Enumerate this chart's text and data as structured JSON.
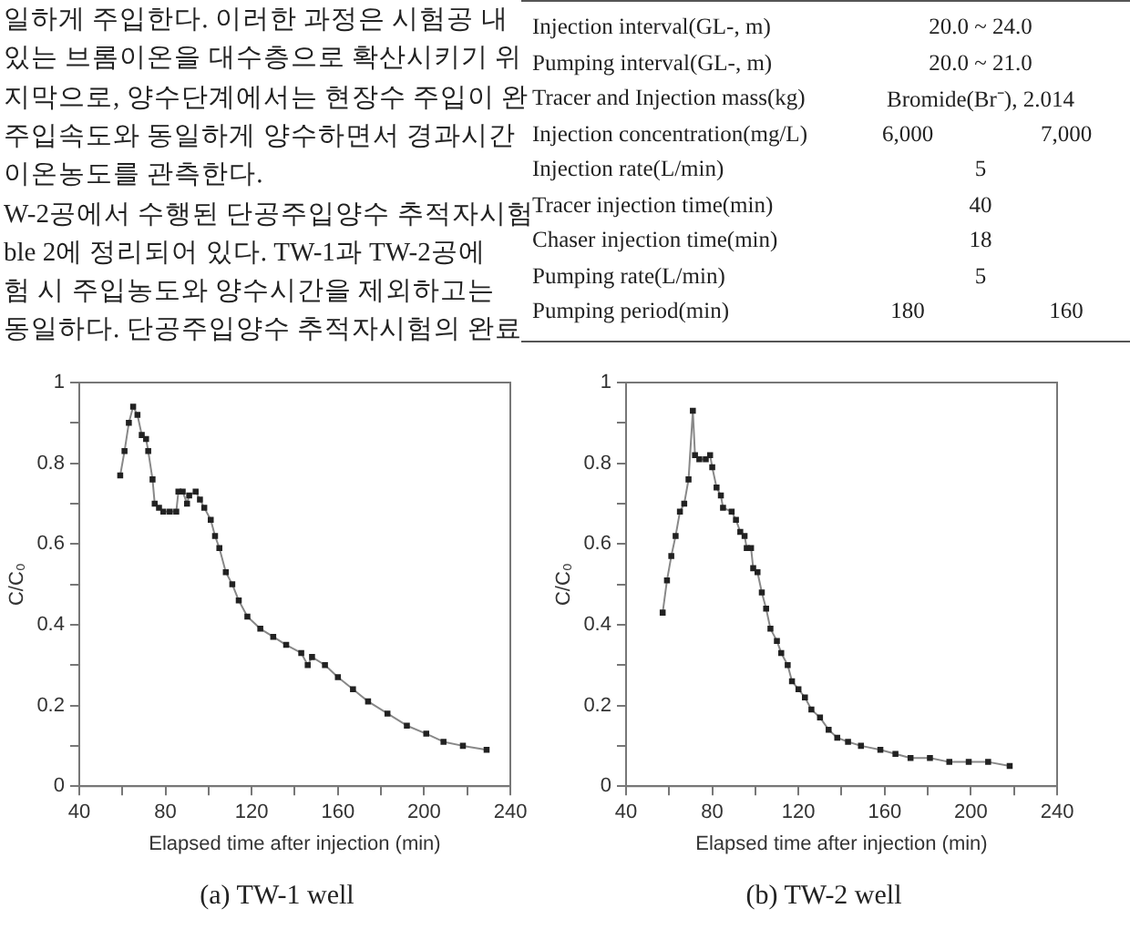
{
  "chart_data": [
    {
      "type": "other",
      "annotations": [
        "일하게 주입한다. 이러한 과정은 시험공 내",
        "있는 브롬이온을 대수층으로 확산시키기 위",
        "지막으로, 양수단계에서는 현장수 주입이 완",
        "주입속도와 동일하게 양수하면서 경과시간",
        "이온농도를 관측한다.",
        "W-2공에서 수행된 단공주입양수 추적자시험",
        "ble 2에 정리되어 있다. TW-1과 TW-2공에",
        "험 시 주입농도와 양수시간을 제외하고는",
        "동일하다. 단공주입양수 추적자시험의 완료"
      ]
    },
    {
      "type": "other",
      "annotations": [
        "Injection  interval(GL-,  m)    20.0 ~ 24.0",
        "Pumping  interval(GL-,  m)    20.0 ~ 21.0",
        "Tracer and Injection mass(kg)    Bromide(Br⁻),  2.014",
        "Injection concentration(mg/L)    6,000    7,000",
        "Injection rate(L/min)    5",
        "Tracer injection time(min)    40",
        "Chaser injection time(min)    18",
        "Pumping rate(L/min)    5",
        "Pumping  period(min)    180    160"
      ]
    },
    {
      "type": "line",
      "title": "(a) TW-1 well",
      "xlabel": "Elapsed time after injection (min)",
      "ylabel": "C/C₀",
      "marker": "square",
      "xlim": [
        40,
        240
      ],
      "xticks": [
        40,
        {
          "value": 60,
          "label": null
        },
        80,
        {
          "value": 100,
          "label": null
        },
        120,
        {
          "value": 140,
          "label": null
        },
        160,
        {
          "value": 180,
          "label": null
        },
        200,
        {
          "value": 220,
          "label": null
        },
        240
      ],
      "ylim": [
        0,
        1
      ],
      "yticks": [
        0,
        {
          "value": 0.1,
          "label": null
        },
        0.2,
        {
          "value": 0.3,
          "label": null
        },
        0.4,
        {
          "value": 0.5,
          "label": null
        },
        0.6,
        {
          "value": 0.7,
          "label": null
        },
        0.8,
        {
          "value": 0.9,
          "label": null
        },
        1
      ],
      "x": [
        59,
        61,
        63,
        65,
        67,
        69,
        71,
        72,
        74,
        75,
        77,
        79,
        82,
        85,
        86,
        88,
        90,
        91,
        94,
        96,
        98,
        101,
        103,
        105,
        108,
        111,
        114,
        118,
        124,
        130,
        136,
        143,
        146,
        148,
        154,
        160,
        167,
        174,
        183,
        192,
        201,
        209,
        218,
        229
      ],
      "series": [
        {
          "color": "#222222",
          "values": [
            0.77,
            0.83,
            0.9,
            0.94,
            0.92,
            0.87,
            0.86,
            0.83,
            0.76,
            0.7,
            0.69,
            0.68,
            0.68,
            0.68,
            0.73,
            0.73,
            0.7,
            0.72,
            0.73,
            0.71,
            0.69,
            0.66,
            0.62,
            0.59,
            0.53,
            0.5,
            0.46,
            0.42,
            0.39,
            0.37,
            0.35,
            0.33,
            0.3,
            0.32,
            0.3,
            0.27,
            0.24,
            0.21,
            0.18,
            0.15,
            0.13,
            0.11,
            0.1,
            0.09
          ]
        }
      ]
    },
    {
      "type": "line",
      "title": "(b) TW-2 well",
      "xlabel": "Elapsed time after injection (min)",
      "ylabel": "C/C₀",
      "marker": "square",
      "xlim": [
        40,
        240
      ],
      "xticks": [
        40,
        {
          "value": 60,
          "label": null
        },
        80,
        {
          "value": 100,
          "label": null
        },
        120,
        {
          "value": 140,
          "label": null
        },
        160,
        {
          "value": 180,
          "label": null
        },
        200,
        {
          "value": 220,
          "label": null
        },
        240
      ],
      "ylim": [
        0,
        1
      ],
      "yticks": [
        0,
        {
          "value": 0.1,
          "label": null
        },
        0.2,
        {
          "value": 0.3,
          "label": null
        },
        0.4,
        {
          "value": 0.5,
          "label": null
        },
        0.6,
        {
          "value": 0.7,
          "label": null
        },
        0.8,
        {
          "value": 0.9,
          "label": null
        },
        1
      ],
      "x": [
        57,
        59,
        61,
        63,
        65,
        67,
        69,
        71,
        72,
        74,
        77,
        79,
        80,
        82,
        84,
        85,
        89,
        91,
        93,
        95,
        96,
        98,
        99,
        101,
        103,
        105,
        107,
        110,
        112,
        115,
        117,
        120,
        123,
        126,
        130,
        134,
        138,
        143,
        149,
        158,
        165,
        172,
        181,
        190,
        199,
        208,
        218
      ],
      "series": [
        {
          "color": "#222222",
          "values": [
            0.43,
            0.51,
            0.57,
            0.62,
            0.68,
            0.7,
            0.76,
            0.93,
            0.82,
            0.81,
            0.81,
            0.82,
            0.79,
            0.74,
            0.72,
            0.69,
            0.68,
            0.66,
            0.63,
            0.62,
            0.59,
            0.59,
            0.54,
            0.53,
            0.48,
            0.44,
            0.39,
            0.36,
            0.33,
            0.3,
            0.26,
            0.24,
            0.22,
            0.19,
            0.17,
            0.14,
            0.12,
            0.11,
            0.1,
            0.09,
            0.08,
            0.07,
            0.07,
            0.06,
            0.06,
            0.06,
            0.05
          ]
        }
      ]
    }
  ]
}
